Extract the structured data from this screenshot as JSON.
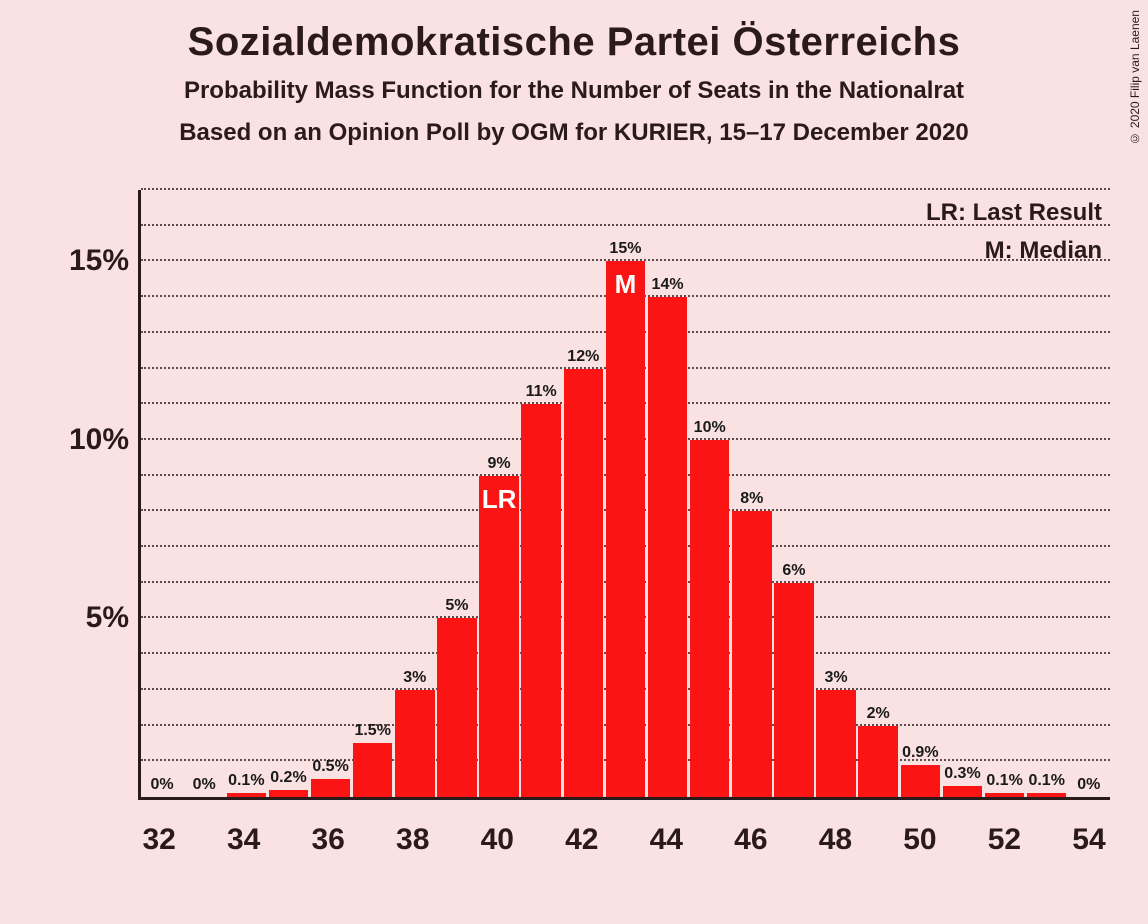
{
  "copyright": "© 2020 Filip van Laenen",
  "title": "Sozialdemokratische Partei Österreichs",
  "subtitle1": "Probability Mass Function for the Number of Seats in the Nationalrat",
  "subtitle2": "Based on an Opinion Poll by OGM for KURIER, 15–17 December 2020",
  "legend": {
    "lr": "LR: Last Result",
    "m": "M: Median"
  },
  "chart": {
    "type": "bar",
    "background_color": "#fae2e2",
    "bar_color": "#fa1414",
    "axis_color": "#2b1a1a",
    "grid_color": "#2b1a1a",
    "text_color": "#2b1a1a",
    "marker_text_color": "#ffffff",
    "ylim": [
      0,
      17
    ],
    "y_major_ticks": [
      5,
      10,
      15
    ],
    "y_minor_step": 1,
    "title_fontsize": 40,
    "subtitle_fontsize": 24,
    "axis_label_fontsize": 30,
    "bar_label_fontsize": 16,
    "marker_fontsize": 26,
    "bar_width": 0.94,
    "x_categories": [
      32,
      33,
      34,
      35,
      36,
      37,
      38,
      39,
      40,
      41,
      42,
      43,
      44,
      45,
      46,
      47,
      48,
      49,
      50,
      51,
      52,
      53,
      54
    ],
    "x_tick_labels": [
      "32",
      "",
      "34",
      "",
      "36",
      "",
      "38",
      "",
      "40",
      "",
      "42",
      "",
      "44",
      "",
      "46",
      "",
      "48",
      "",
      "50",
      "",
      "52",
      "",
      "54"
    ],
    "values": [
      0,
      0,
      0.1,
      0.2,
      0.5,
      1.5,
      3,
      5,
      9,
      11,
      12,
      15,
      14,
      10,
      8,
      6,
      3,
      2,
      0.9,
      0.3,
      0.1,
      0.1,
      0
    ],
    "value_labels": [
      "0%",
      "0%",
      "0.1%",
      "0.2%",
      "0.5%",
      "1.5%",
      "3%",
      "5%",
      "9%",
      "11%",
      "12%",
      "15%",
      "14%",
      "10%",
      "8%",
      "6%",
      "3%",
      "2%",
      "0.9%",
      "0.3%",
      "0.1%",
      "0.1%",
      "0%"
    ],
    "markers": {
      "40": "LR",
      "43": "M"
    }
  }
}
